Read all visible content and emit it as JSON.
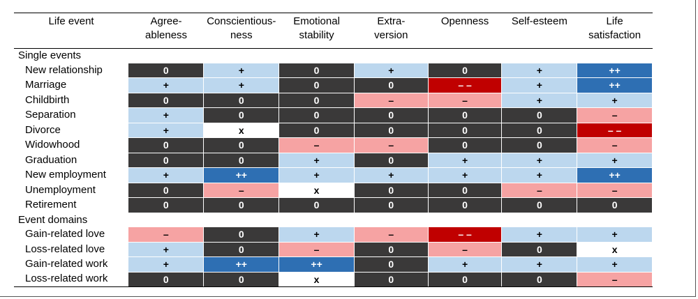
{
  "headers": [
    "Life event",
    "Agree-\nableness",
    "Conscientious-\nness",
    "Emotional\nstability",
    "Extra-\nversion",
    "Openness",
    "Self-esteem",
    "Life\nsatisfaction"
  ],
  "sections": [
    {
      "title": "Single events",
      "rows": [
        {
          "label": "New relationship",
          "values": [
            "0",
            "+",
            "0",
            "+",
            "0",
            "+",
            "++"
          ]
        },
        {
          "label": "Marriage",
          "values": [
            "+",
            "+",
            "0",
            "0",
            "– –",
            "+",
            "++"
          ]
        },
        {
          "label": "Childbirth",
          "values": [
            "0",
            "0",
            "0",
            "–",
            "–",
            "+",
            "+"
          ]
        },
        {
          "label": "Separation",
          "values": [
            "+",
            "0",
            "0",
            "0",
            "0",
            "0",
            "–"
          ]
        },
        {
          "label": "Divorce",
          "values": [
            "+",
            "x",
            "0",
            "0",
            "0",
            "0",
            "– –"
          ]
        },
        {
          "label": "Widowhood",
          "values": [
            "0",
            "0",
            "–",
            "–",
            "0",
            "0",
            "–"
          ]
        },
        {
          "label": "Graduation",
          "values": [
            "0",
            "0",
            "+",
            "0",
            "+",
            "+",
            "+"
          ]
        },
        {
          "label": "New employment",
          "values": [
            "+",
            "++",
            "+",
            "+",
            "+",
            "+",
            "++"
          ]
        },
        {
          "label": "Unemployment",
          "values": [
            "0",
            "–",
            "x",
            "0",
            "0",
            "–",
            "–"
          ]
        },
        {
          "label": "Retirement",
          "values": [
            "0",
            "0",
            "0",
            "0",
            "0",
            "0",
            "0"
          ]
        }
      ]
    },
    {
      "title": "Event domains",
      "rows": [
        {
          "label": "Gain-related love",
          "values": [
            "–",
            "0",
            "+",
            "–",
            "– –",
            "+",
            "+"
          ]
        },
        {
          "label": "Loss-related love",
          "values": [
            "+",
            "0",
            "–",
            "0",
            "–",
            "0",
            "x"
          ]
        },
        {
          "label": "Gain-related work",
          "values": [
            "+",
            "++",
            "++",
            "0",
            "+",
            "+",
            "+"
          ]
        },
        {
          "label": "Loss-related work",
          "values": [
            "0",
            "0",
            "x",
            "0",
            "0",
            "0",
            "–"
          ]
        }
      ]
    }
  ],
  "value_colors": {
    "0": "#3a3939",
    "+": "#bcd7ee",
    "++": "#2e6fb3",
    "–": "#f6a3a3",
    "– –": "#c00000",
    "x": "#ffffff"
  }
}
